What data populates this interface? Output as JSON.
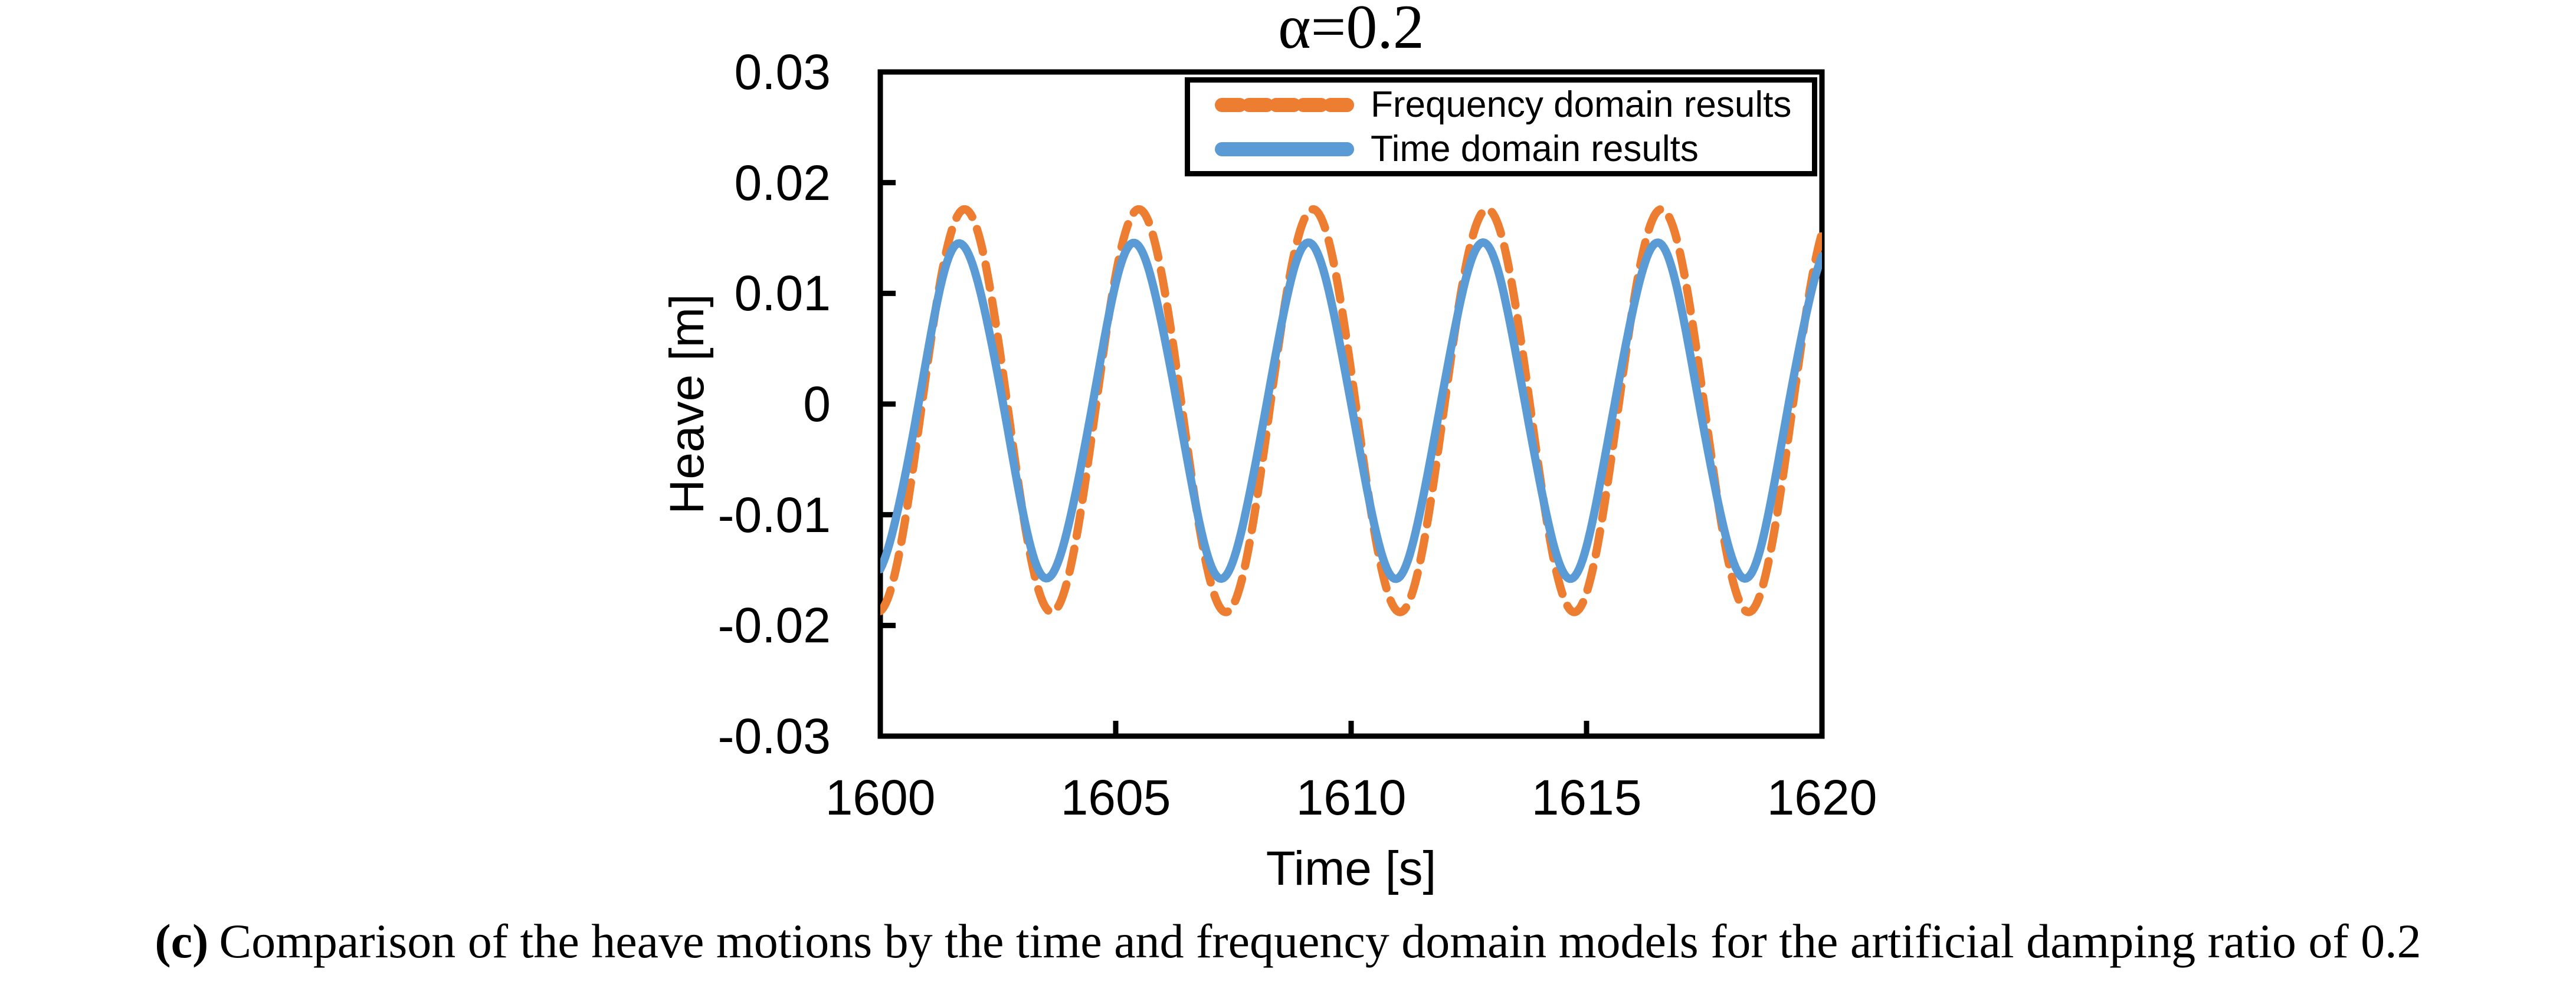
{
  "caption": {
    "prefix": "(c)",
    "text": "Comparison of the heave motions by the time and frequency domain models for the artificial damping ratio of 0.2"
  },
  "chart_data": {
    "type": "line",
    "title": "α=0.2",
    "xlabel": "Time [s]",
    "ylabel": "Heave [m]",
    "xlim": [
      1600,
      1620
    ],
    "ylim": [
      -0.03,
      0.03
    ],
    "x_ticks": [
      1600,
      1605,
      1610,
      1615,
      1620
    ],
    "x_tick_labels": [
      "1600",
      "1605",
      "1610",
      "1615",
      "1620"
    ],
    "y_ticks": [
      0.03,
      0.02,
      0.01,
      0,
      -0.01,
      -0.02,
      -0.03
    ],
    "y_tick_labels": [
      "0.03",
      "0.02",
      "0.01",
      "0",
      "-0.01",
      "-0.02",
      "-0.03"
    ],
    "grid": false,
    "legend_position": "top-center-inside",
    "axis_color": "#000000",
    "series": [
      {
        "name": "Frequency domain results",
        "style": "dashed",
        "color": "#ED7D31",
        "waveform": "sinusoid",
        "mean": -0.0006,
        "amplitude": 0.0182,
        "period_s": 3.7,
        "peak_time_s": 1601.79,
        "approx_max": 0.0176,
        "approx_min": -0.0188,
        "ripple_amplitude": 0,
        "ripple_period_s": 1
      },
      {
        "name": "Time domain results",
        "style": "solid",
        "color": "#5B9BD5",
        "waveform": "sinusoid",
        "mean": -0.0006,
        "amplitude": 0.0148,
        "period_s": 3.7,
        "peak_time_s": 1601.7,
        "approx_max": 0.0142,
        "approx_min": -0.0154,
        "ripple_amplitude": 0.0004,
        "ripple_period_s": 1.25
      }
    ]
  }
}
